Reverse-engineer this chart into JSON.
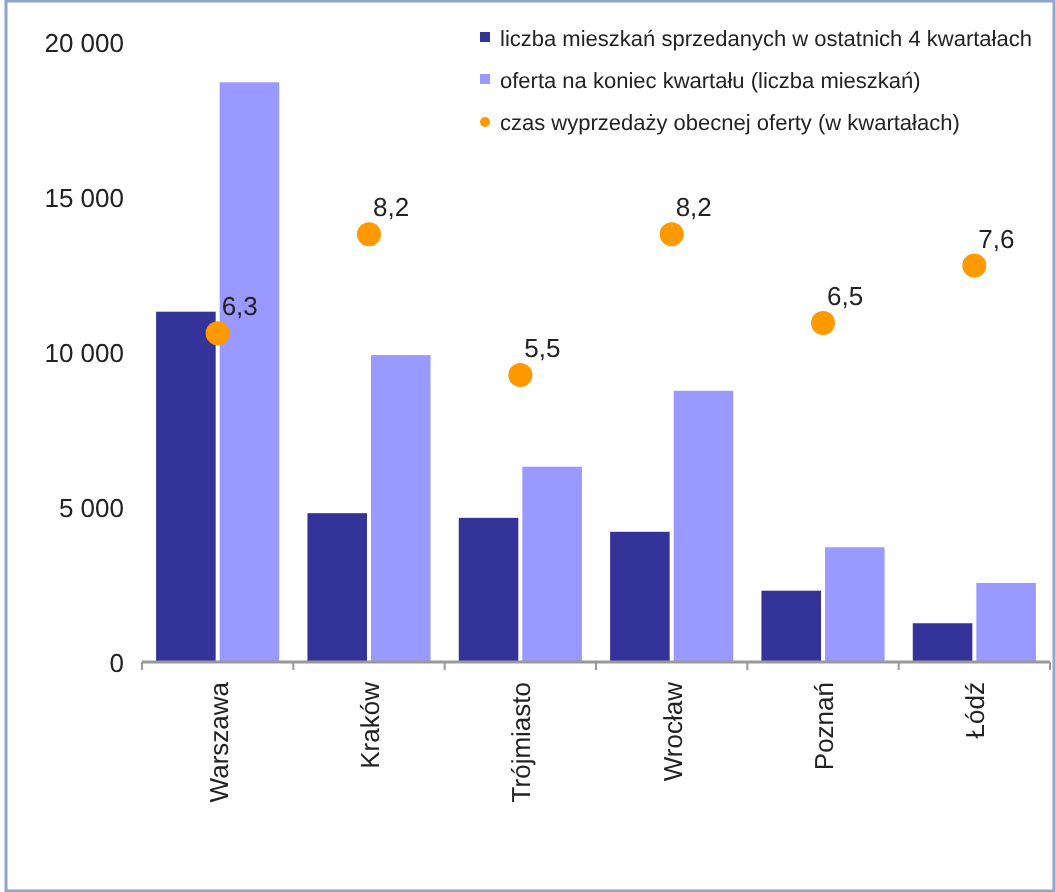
{
  "chart_data": {
    "type": "bar",
    "categories": [
      "Warszawa",
      "Kraków",
      "Trójmiasto",
      "Wrocław",
      "Poznań",
      "Łódź"
    ],
    "series": [
      {
        "name": "liczba mieszkań sprzedanych w ostatnich 4 kwartałach",
        "color": "#333399",
        "values": [
          11300,
          4800,
          4650,
          4200,
          2300,
          1250
        ]
      },
      {
        "name": "oferta na koniec kwartału (liczba mieszkań)",
        "color": "#9999ff",
        "values": [
          18700,
          9900,
          6300,
          8750,
          3700,
          2550
        ]
      },
      {
        "name": "czas wyprzedaży obecnej oferty (w kwartałach)",
        "color": "#ff9900",
        "type": "scatter",
        "axis": "y2",
        "marker": "circle",
        "values": [
          6.3,
          8.2,
          5.5,
          8.2,
          6.5,
          7.6
        ],
        "value_labels": [
          "6,3",
          "8,2",
          "5,5",
          "8,2",
          "6,5",
          "7,6"
        ]
      }
    ],
    "ylim": [
      0,
      20000
    ],
    "yticks": [
      {
        "value": 0,
        "label": "0"
      },
      {
        "value": 5000,
        "label": "5 000"
      },
      {
        "value": 10000,
        "label": "10 000"
      },
      {
        "value": 15000,
        "label": "15 000"
      },
      {
        "value": 20000,
        "label": "20 000"
      }
    ],
    "grid": false,
    "legend": "top right"
  }
}
